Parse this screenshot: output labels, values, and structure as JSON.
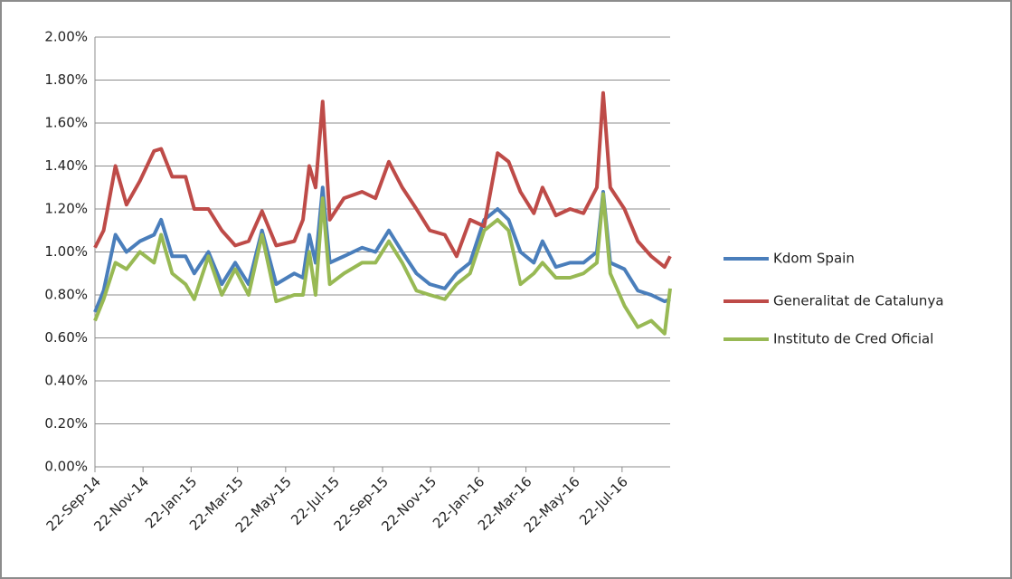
{
  "chart_data": {
    "type": "line",
    "x": [
      "2014-09-22",
      "2014-10-03",
      "2014-10-18",
      "2014-11-01",
      "2014-11-18",
      "2014-12-06",
      "2014-12-15",
      "2014-12-29",
      "2015-01-15",
      "2015-01-26",
      "2015-02-13",
      "2015-03-02",
      "2015-03-19",
      "2015-04-05",
      "2015-04-22",
      "2015-05-10",
      "2015-06-02",
      "2015-06-13",
      "2015-06-21",
      "2015-06-29",
      "2015-07-08",
      "2015-07-17",
      "2015-08-04",
      "2015-08-27",
      "2015-09-13",
      "2015-09-30",
      "2015-10-17",
      "2015-11-04",
      "2015-11-21",
      "2015-12-10",
      "2015-12-25",
      "2016-01-11",
      "2016-01-29",
      "2016-02-15",
      "2016-02-29",
      "2016-03-15",
      "2016-04-01",
      "2016-04-12",
      "2016-04-29",
      "2016-05-17",
      "2016-06-03",
      "2016-06-20",
      "2016-06-28",
      "2016-07-07",
      "2016-07-25",
      "2016-08-11",
      "2016-08-28",
      "2016-09-14",
      "2016-09-21"
    ],
    "series": [
      {
        "name": "Kdom Spain",
        "color": "#4a7ebb",
        "values": [
          0.72,
          0.82,
          1.08,
          1.0,
          1.05,
          1.08,
          1.15,
          0.98,
          0.98,
          0.9,
          1.0,
          0.85,
          0.95,
          0.85,
          1.1,
          0.85,
          0.9,
          0.88,
          1.08,
          0.95,
          1.3,
          0.95,
          0.98,
          1.02,
          1.0,
          1.1,
          1.0,
          0.9,
          0.85,
          0.83,
          0.9,
          0.95,
          1.15,
          1.2,
          1.15,
          1.0,
          0.95,
          1.05,
          0.93,
          0.95,
          0.95,
          1.0,
          1.28,
          0.95,
          0.92,
          0.82,
          0.8,
          0.77,
          0.78
        ]
      },
      {
        "name": "Generalitat de Catalunya",
        "color": "#be4b48",
        "values": [
          1.02,
          1.1,
          1.4,
          1.22,
          1.33,
          1.47,
          1.48,
          1.35,
          1.35,
          1.2,
          1.2,
          1.1,
          1.03,
          1.05,
          1.19,
          1.03,
          1.05,
          1.15,
          1.4,
          1.3,
          1.7,
          1.15,
          1.25,
          1.28,
          1.25,
          1.42,
          1.3,
          1.2,
          1.1,
          1.08,
          0.98,
          1.15,
          1.12,
          1.46,
          1.42,
          1.28,
          1.18,
          1.3,
          1.17,
          1.2,
          1.18,
          1.3,
          1.74,
          1.3,
          1.2,
          1.05,
          0.98,
          0.93,
          0.98
        ]
      },
      {
        "name": "Instituto de Cred Oficial",
        "color": "#98b954",
        "values": [
          0.68,
          0.78,
          0.95,
          0.92,
          1.0,
          0.95,
          1.08,
          0.9,
          0.85,
          0.78,
          0.98,
          0.8,
          0.92,
          0.8,
          1.08,
          0.77,
          0.8,
          0.8,
          1.0,
          0.8,
          1.25,
          0.85,
          0.9,
          0.95,
          0.95,
          1.05,
          0.95,
          0.82,
          0.8,
          0.78,
          0.85,
          0.9,
          1.1,
          1.15,
          1.1,
          0.85,
          0.9,
          0.95,
          0.88,
          0.88,
          0.9,
          0.95,
          1.27,
          0.9,
          0.75,
          0.65,
          0.68,
          0.62,
          0.83
        ]
      }
    ],
    "xlim": [
      "2014-09-22",
      "2016-09-21"
    ],
    "xticks": [
      {
        "value": "2014-09-22",
        "label": "22-Sep-14"
      },
      {
        "value": "2014-11-22",
        "label": "22-Nov-14"
      },
      {
        "value": "2015-01-22",
        "label": "22-Jan-15"
      },
      {
        "value": "2015-03-22",
        "label": "22-Mar-15"
      },
      {
        "value": "2015-05-22",
        "label": "22-May-15"
      },
      {
        "value": "2015-07-22",
        "label": "22-Jul-15"
      },
      {
        "value": "2015-09-22",
        "label": "22-Sep-15"
      },
      {
        "value": "2015-11-22",
        "label": "22-Nov-15"
      },
      {
        "value": "2016-01-22",
        "label": "22-Jan-16"
      },
      {
        "value": "2016-03-22",
        "label": "22-Mar-16"
      },
      {
        "value": "2016-05-22",
        "label": "22-May-16"
      },
      {
        "value": "2016-07-22",
        "label": "22-Jul-16"
      }
    ],
    "ylim": [
      0,
      2
    ],
    "yticks": [
      {
        "value": 0,
        "label": "0.00%"
      },
      {
        "value": 0.2,
        "label": "0.20%"
      },
      {
        "value": 0.4,
        "label": "0.40%"
      },
      {
        "value": 0.6,
        "label": "0.60%"
      },
      {
        "value": 0.8,
        "label": "0.80%"
      },
      {
        "value": 1,
        "label": "1.00%"
      },
      {
        "value": 1.2,
        "label": "1.20%"
      },
      {
        "value": 1.4,
        "label": "1.40%"
      },
      {
        "value": 1.6,
        "label": "1.60%"
      },
      {
        "value": 1.8,
        "label": "1.80%"
      },
      {
        "value": 2,
        "label": "2.00%"
      }
    ],
    "grid": true,
    "legend": "right"
  }
}
